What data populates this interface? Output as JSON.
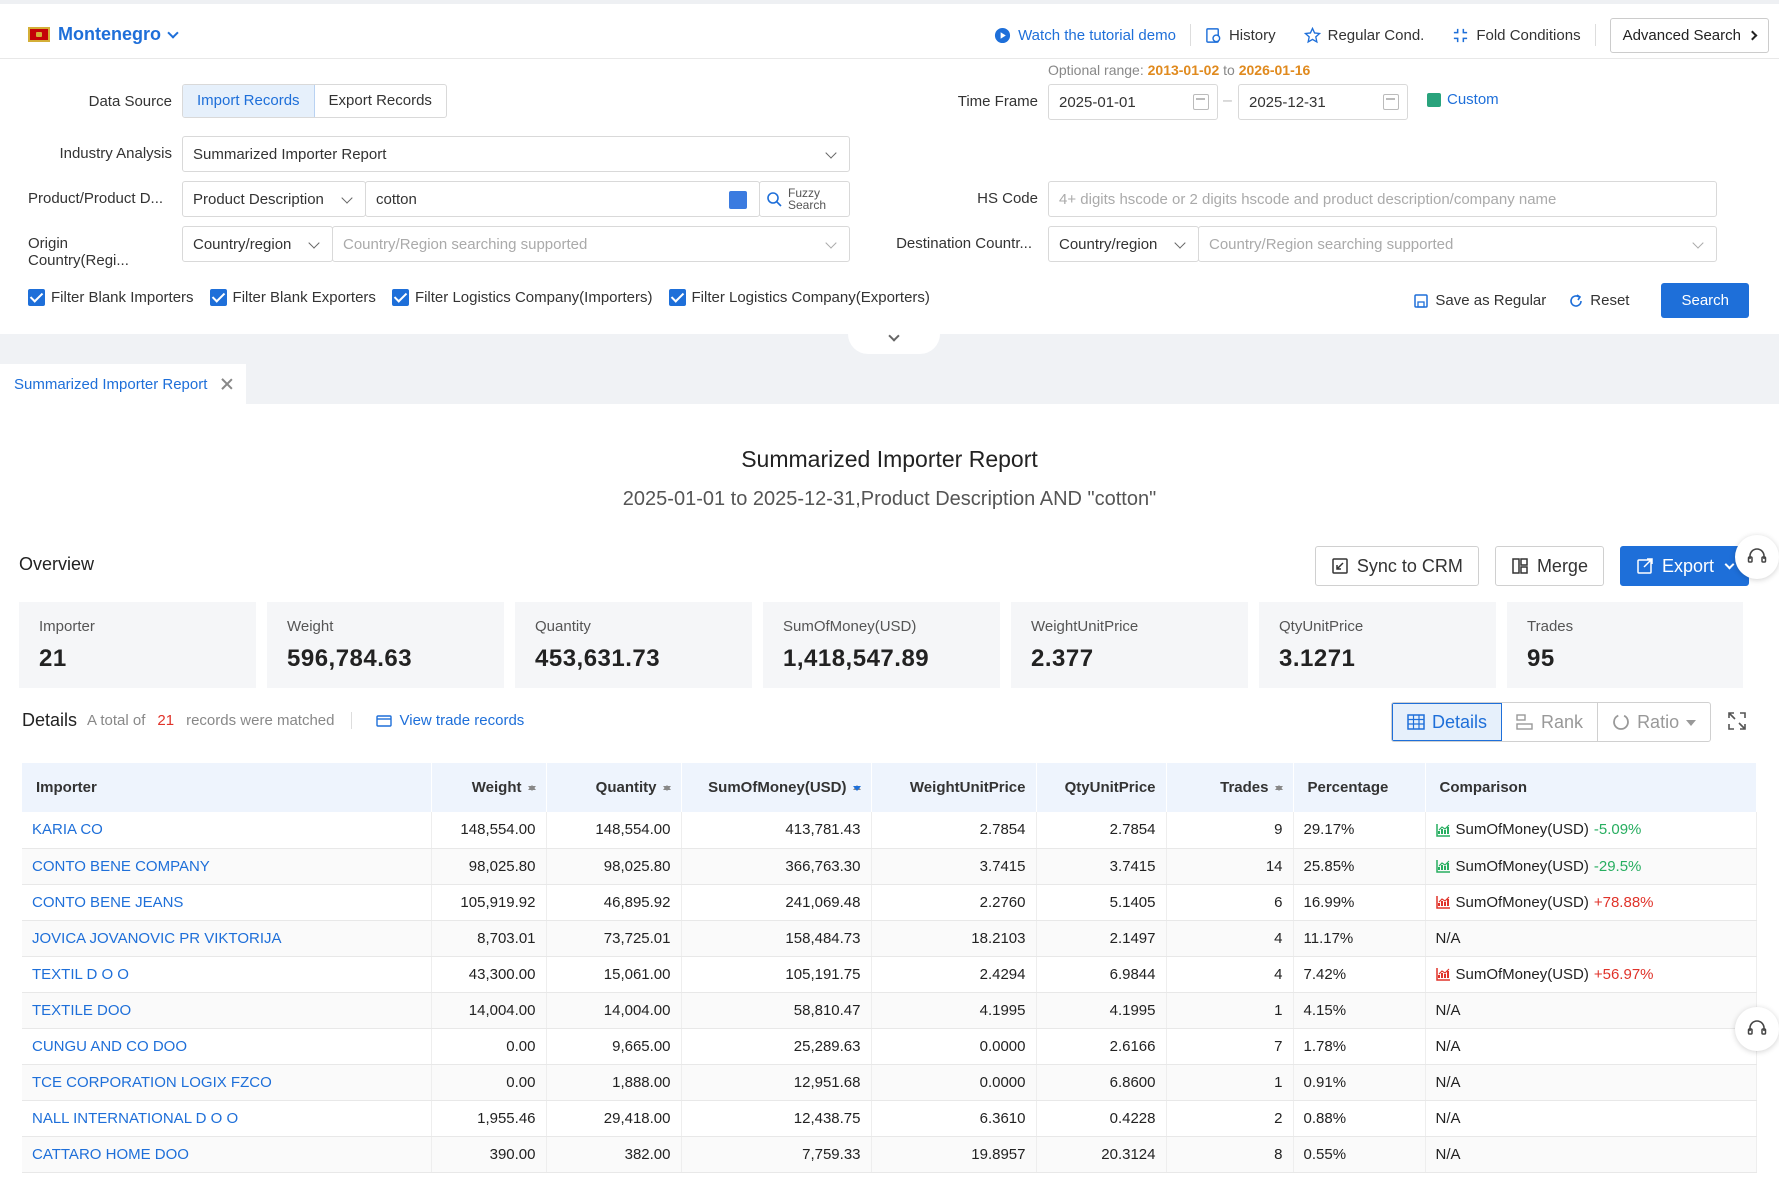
{
  "header": {
    "country": "Montenegro",
    "links": {
      "tutorial": "Watch the tutorial demo",
      "history": "History",
      "regular": "Regular Cond.",
      "fold": "Fold Conditions",
      "advanced": "Advanced Search"
    }
  },
  "form": {
    "optional_range_label": "Optional range:",
    "optional_from": "2013-01-02",
    "optional_to_word": "to",
    "optional_to": "2026-01-16",
    "data_source_label": "Data Source",
    "import_label": "Import Records",
    "export_label": "Export Records",
    "time_frame_label": "Time Frame",
    "date_from": "2025-01-01",
    "date_to": "2025-12-31",
    "custom_label": "Custom",
    "industry_label": "Industry Analysis",
    "industry_value": "Summarized Importer Report",
    "product_label": "Product/Product D...",
    "product_type": "Product Description",
    "product_value": "cotton",
    "fuzzy_label_1": "Fuzzy",
    "fuzzy_label_2": "Search",
    "hs_label": "HS Code",
    "hs_placeholder": "4+ digits hscode or 2 digits hscode and product description/company name",
    "origin_label": "Origin Country(Regi...",
    "origin_type": "Country/region",
    "origin_placeholder": "Country/Region searching supported",
    "dest_label": "Destination Countr...",
    "dest_type": "Country/region",
    "dest_placeholder": "Country/Region searching supported",
    "filters": [
      "Filter Blank Importers",
      "Filter Blank Exporters",
      "Filter Logistics Company(Importers)",
      "Filter Logistics Company(Exporters)"
    ],
    "save_regular": "Save as Regular",
    "reset": "Reset",
    "search": "Search"
  },
  "tab": {
    "label": "Summarized Importer Report"
  },
  "report": {
    "title": "Summarized Importer Report",
    "subtitle": "2025-01-01 to 2025-12-31,Product Description AND \"cotton\"",
    "overview_label": "Overview",
    "sync": "Sync to CRM",
    "merge": "Merge",
    "export": "Export",
    "cards": [
      {
        "k": "Importer",
        "v": "21"
      },
      {
        "k": "Weight",
        "v": "596,784.63"
      },
      {
        "k": "Quantity",
        "v": "453,631.73"
      },
      {
        "k": "SumOfMoney(USD)",
        "v": "1,418,547.89"
      },
      {
        "k": "WeightUnitPrice",
        "v": "2.377"
      },
      {
        "k": "QtyUnitPrice",
        "v": "3.1271"
      },
      {
        "k": "Trades",
        "v": "95"
      }
    ],
    "details_label": "Details",
    "total_prefix": "A total of",
    "total_count": "21",
    "total_suffix": "records were matched",
    "view_trade": "View trade records",
    "views": {
      "details": "Details",
      "rank": "Rank",
      "ratio": "Ratio"
    }
  },
  "table": {
    "headers": [
      "Importer",
      "Weight",
      "Quantity",
      "SumOfMoney(USD)",
      "WeightUnitPrice",
      "QtyUnitPrice",
      "Trades",
      "Percentage",
      "Comparison"
    ],
    "rows": [
      {
        "importer": "KARIA CO",
        "weight": "148,554.00",
        "quantity": "148,554.00",
        "money": "413,781.43",
        "wup": "2.7854",
        "qup": "2.7854",
        "trades": "9",
        "pct": "29.17%",
        "cmp_label": "SumOfMoney(USD)",
        "cmp_val": "-5.09%",
        "dir": "neg"
      },
      {
        "importer": "CONTO BENE COMPANY",
        "weight": "98,025.80",
        "quantity": "98,025.80",
        "money": "366,763.30",
        "wup": "3.7415",
        "qup": "3.7415",
        "trades": "14",
        "pct": "25.85%",
        "cmp_label": "SumOfMoney(USD)",
        "cmp_val": "-29.5%",
        "dir": "neg"
      },
      {
        "importer": "CONTO BENE JEANS",
        "weight": "105,919.92",
        "quantity": "46,895.92",
        "money": "241,069.48",
        "wup": "2.2760",
        "qup": "5.1405",
        "trades": "6",
        "pct": "16.99%",
        "cmp_label": "SumOfMoney(USD)",
        "cmp_val": "+78.88%",
        "dir": "pos"
      },
      {
        "importer": "JOVICA JOVANOVIC PR VIKTORIJA",
        "weight": "8,703.01",
        "quantity": "73,725.01",
        "money": "158,484.73",
        "wup": "18.2103",
        "qup": "2.1497",
        "trades": "4",
        "pct": "11.17%",
        "cmp_label": "N/A",
        "cmp_val": "",
        "dir": "na"
      },
      {
        "importer": "TEXTIL D O O",
        "weight": "43,300.00",
        "quantity": "15,061.00",
        "money": "105,191.75",
        "wup": "2.4294",
        "qup": "6.9844",
        "trades": "4",
        "pct": "7.42%",
        "cmp_label": "SumOfMoney(USD)",
        "cmp_val": "+56.97%",
        "dir": "pos"
      },
      {
        "importer": "TEXTILE DOO",
        "weight": "14,004.00",
        "quantity": "14,004.00",
        "money": "58,810.47",
        "wup": "4.1995",
        "qup": "4.1995",
        "trades": "1",
        "pct": "4.15%",
        "cmp_label": "N/A",
        "cmp_val": "",
        "dir": "na"
      },
      {
        "importer": "CUNGU AND CO DOO",
        "weight": "0.00",
        "quantity": "9,665.00",
        "money": "25,289.63",
        "wup": "0.0000",
        "qup": "2.6166",
        "trades": "7",
        "pct": "1.78%",
        "cmp_label": "N/A",
        "cmp_val": "",
        "dir": "na"
      },
      {
        "importer": "TCE CORPORATION LOGIX FZCO",
        "weight": "0.00",
        "quantity": "1,888.00",
        "money": "12,951.68",
        "wup": "0.0000",
        "qup": "6.8600",
        "trades": "1",
        "pct": "0.91%",
        "cmp_label": "N/A",
        "cmp_val": "",
        "dir": "na"
      },
      {
        "importer": "NALL INTERNATIONAL D O O",
        "weight": "1,955.46",
        "quantity": "29,418.00",
        "money": "12,438.75",
        "wup": "6.3610",
        "qup": "0.4228",
        "trades": "2",
        "pct": "0.88%",
        "cmp_label": "N/A",
        "cmp_val": "",
        "dir": "na"
      },
      {
        "importer": "CATTARO HOME DOO",
        "weight": "390.00",
        "quantity": "382.00",
        "money": "7,759.33",
        "wup": "19.8957",
        "qup": "20.3124",
        "trades": "8",
        "pct": "0.55%",
        "cmp_label": "N/A",
        "cmp_val": "",
        "dir": "na"
      }
    ]
  },
  "colors": {
    "accent": "#1e6fd9",
    "positive": "#e0332a",
    "negative": "#27ae60",
    "range": "#e08a1e"
  }
}
